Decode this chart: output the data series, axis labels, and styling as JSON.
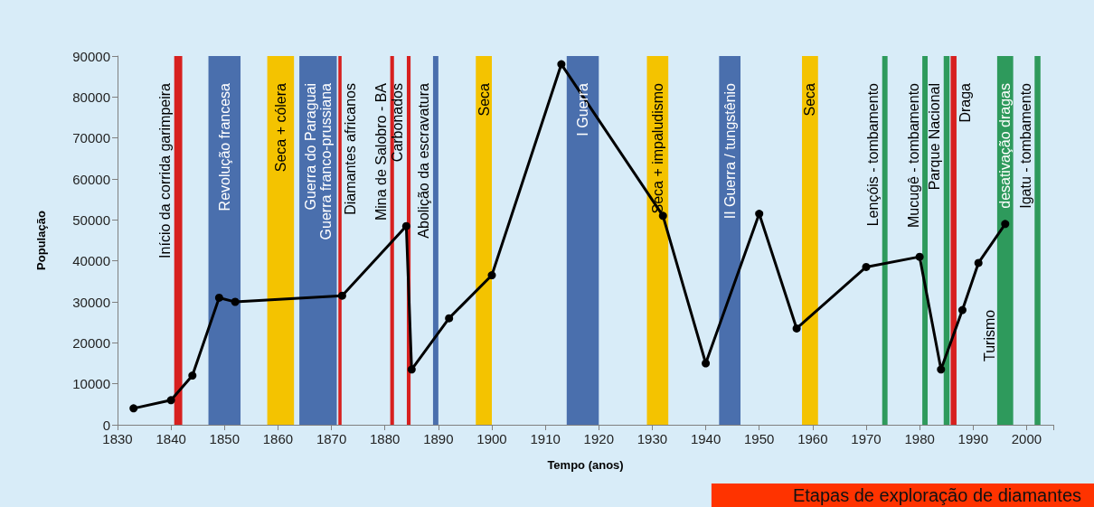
{
  "chart_data": {
    "type": "line",
    "title": "Etapas de exploração de diamantes",
    "xlabel": "Tempo (anos)",
    "ylabel": "População",
    "x": [
      1833,
      1840,
      1844,
      1849,
      1852,
      1872,
      1884,
      1885,
      1892,
      1900,
      1913,
      1932,
      1940,
      1950,
      1957,
      1970,
      1980,
      1984,
      1988,
      1991,
      1996
    ],
    "series": [
      {
        "color": "#000000",
        "values": [
          4000,
          6000,
          12000,
          31000,
          30000,
          31500,
          48500,
          13500,
          26000,
          36500,
          88000,
          51000,
          15000,
          51500,
          23500,
          38500,
          41000,
          13500,
          28000,
          39500,
          49000
        ]
      }
    ],
    "xlim": [
      1830,
      2005
    ],
    "xticks": [
      1830,
      1840,
      1850,
      1860,
      1870,
      1880,
      1890,
      1900,
      1910,
      1920,
      1930,
      1940,
      1950,
      1960,
      1970,
      1980,
      1990,
      2000
    ],
    "ylim": [
      0,
      90000
    ],
    "yticks": [
      0,
      10000,
      20000,
      30000,
      40000,
      50000,
      60000,
      70000,
      80000,
      90000
    ],
    "grid": false,
    "marker": "circle",
    "line_style": "solid",
    "bands": [
      {
        "axis": "x",
        "from": 1840.6,
        "to": 1842.1,
        "label": "Início da corrida garimpeira",
        "color": "#d7201f"
      },
      {
        "axis": "x",
        "from": 1847,
        "to": 1853,
        "label": "Revolução francesa",
        "color": "#4a6fad"
      },
      {
        "axis": "x",
        "from": 1858,
        "to": 1863,
        "label": "Seca + cólera",
        "color": "#f4c300"
      },
      {
        "axis": "x",
        "from": 1864,
        "to": 1871,
        "label": "Guerra do Paraguai\nGuerra franco-prussiana",
        "color": "#4a6fad"
      },
      {
        "axis": "x",
        "from": 1871.3,
        "to": 1871.9,
        "label": "Diamantes africanos",
        "color": "#d7201f"
      },
      {
        "axis": "x",
        "from": 1881,
        "to": 1881.7,
        "label": "Mina de Salobro - BA",
        "color": "#d7201f"
      },
      {
        "axis": "x",
        "from": 1884.1,
        "to": 1884.8,
        "label": "Carbonados",
        "color": "#d7201f"
      },
      {
        "axis": "x",
        "from": 1889,
        "to": 1890,
        "label": "Abolição da escravatura",
        "color": "#4a6fad"
      },
      {
        "axis": "x",
        "from": 1897,
        "to": 1900,
        "label": "Seca",
        "color": "#f4c300"
      },
      {
        "axis": "x",
        "from": 1914,
        "to": 1920,
        "label": "I Guerra",
        "color": "#4a6fad"
      },
      {
        "axis": "x",
        "from": 1929,
        "to": 1933,
        "label": "Seca + impaludismo",
        "color": "#f4c300"
      },
      {
        "axis": "x",
        "from": 1942.5,
        "to": 1946.5,
        "label": "II Guerra / tungstênio",
        "color": "#4a6fad"
      },
      {
        "axis": "x",
        "from": 1958,
        "to": 1961,
        "label": "Seca",
        "color": "#f4c300"
      },
      {
        "axis": "x",
        "from": 1973,
        "to": 1974,
        "label": "Lençóis - tombamento",
        "color": "#2e9a5c"
      },
      {
        "axis": "x",
        "from": 1980.5,
        "to": 1981.5,
        "label": "Mucugê - tombamento",
        "color": "#2e9a5c"
      },
      {
        "axis": "x",
        "from": 1984.5,
        "to": 1985.6,
        "label": "Parque Nacional",
        "color": "#2e9a5c"
      },
      {
        "axis": "x",
        "from": 1985.8,
        "to": 1986.9,
        "label": "Draga",
        "color": "#d7201f"
      },
      {
        "axis": "x",
        "from": 1994.5,
        "to": 1997.5,
        "label": "desativação dragas",
        "color": "#2e9a5c"
      },
      {
        "axis": "x",
        "from": 2001.5,
        "to": 2002.6,
        "label": "Igatu - tombamento",
        "color": "#2e9a5c"
      }
    ],
    "annotations": [
      "Turismo"
    ]
  }
}
